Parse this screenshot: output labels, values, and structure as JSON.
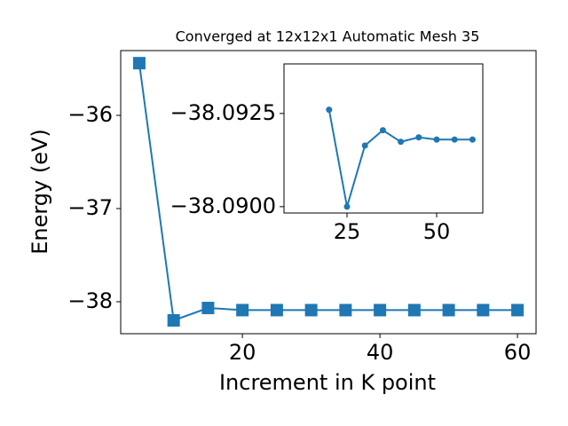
{
  "chart_data": [
    {
      "type": "line",
      "title": "Converged at 12x12x1 Automatic Mesh 35",
      "xlabel": "Increment in K point",
      "ylabel": "Energy (eV)",
      "x": [
        5,
        10,
        15,
        20,
        25,
        30,
        35,
        40,
        45,
        50,
        55,
        60
      ],
      "series": [
        {
          "name": "Energy",
          "color": "#1f77b4",
          "marker": "square",
          "values": [
            -35.44,
            -38.2,
            -38.067,
            -38.09,
            -38.09,
            -38.09,
            -38.09,
            -38.09,
            -38.09,
            -38.09,
            -38.09,
            -38.09
          ]
        }
      ],
      "xlim": [
        2.3,
        62.7
      ],
      "xticks": [
        20,
        40,
        60
      ],
      "ylim": [
        -38.343,
        -35.305
      ],
      "yticks": [
        {
          "value": -38,
          "label": "−38"
        },
        {
          "value": -37,
          "label": "−37"
        },
        {
          "value": -36,
          "label": "−36"
        }
      ]
    },
    {
      "type": "line",
      "x": [
        20,
        25,
        30,
        35,
        40,
        45,
        50,
        55,
        60
      ],
      "series": [
        {
          "name": "Energy",
          "color": "#1f77b4",
          "marker": "circle",
          "values": [
            -38.0926,
            -38.09,
            -38.09164,
            -38.09205,
            -38.09174,
            -38.09186,
            -38.0918,
            -38.0918,
            -38.0918
          ]
        }
      ],
      "xlim": [
        7.43,
        62.87
      ],
      "xticks": [
        25,
        50
      ],
      "ylim": [
        -38.08983,
        -38.09383
      ],
      "yticks": [
        {
          "value": -38.09,
          "label": "−38.0900"
        },
        {
          "value": -38.0925,
          "label": "−38.0925"
        }
      ]
    }
  ]
}
